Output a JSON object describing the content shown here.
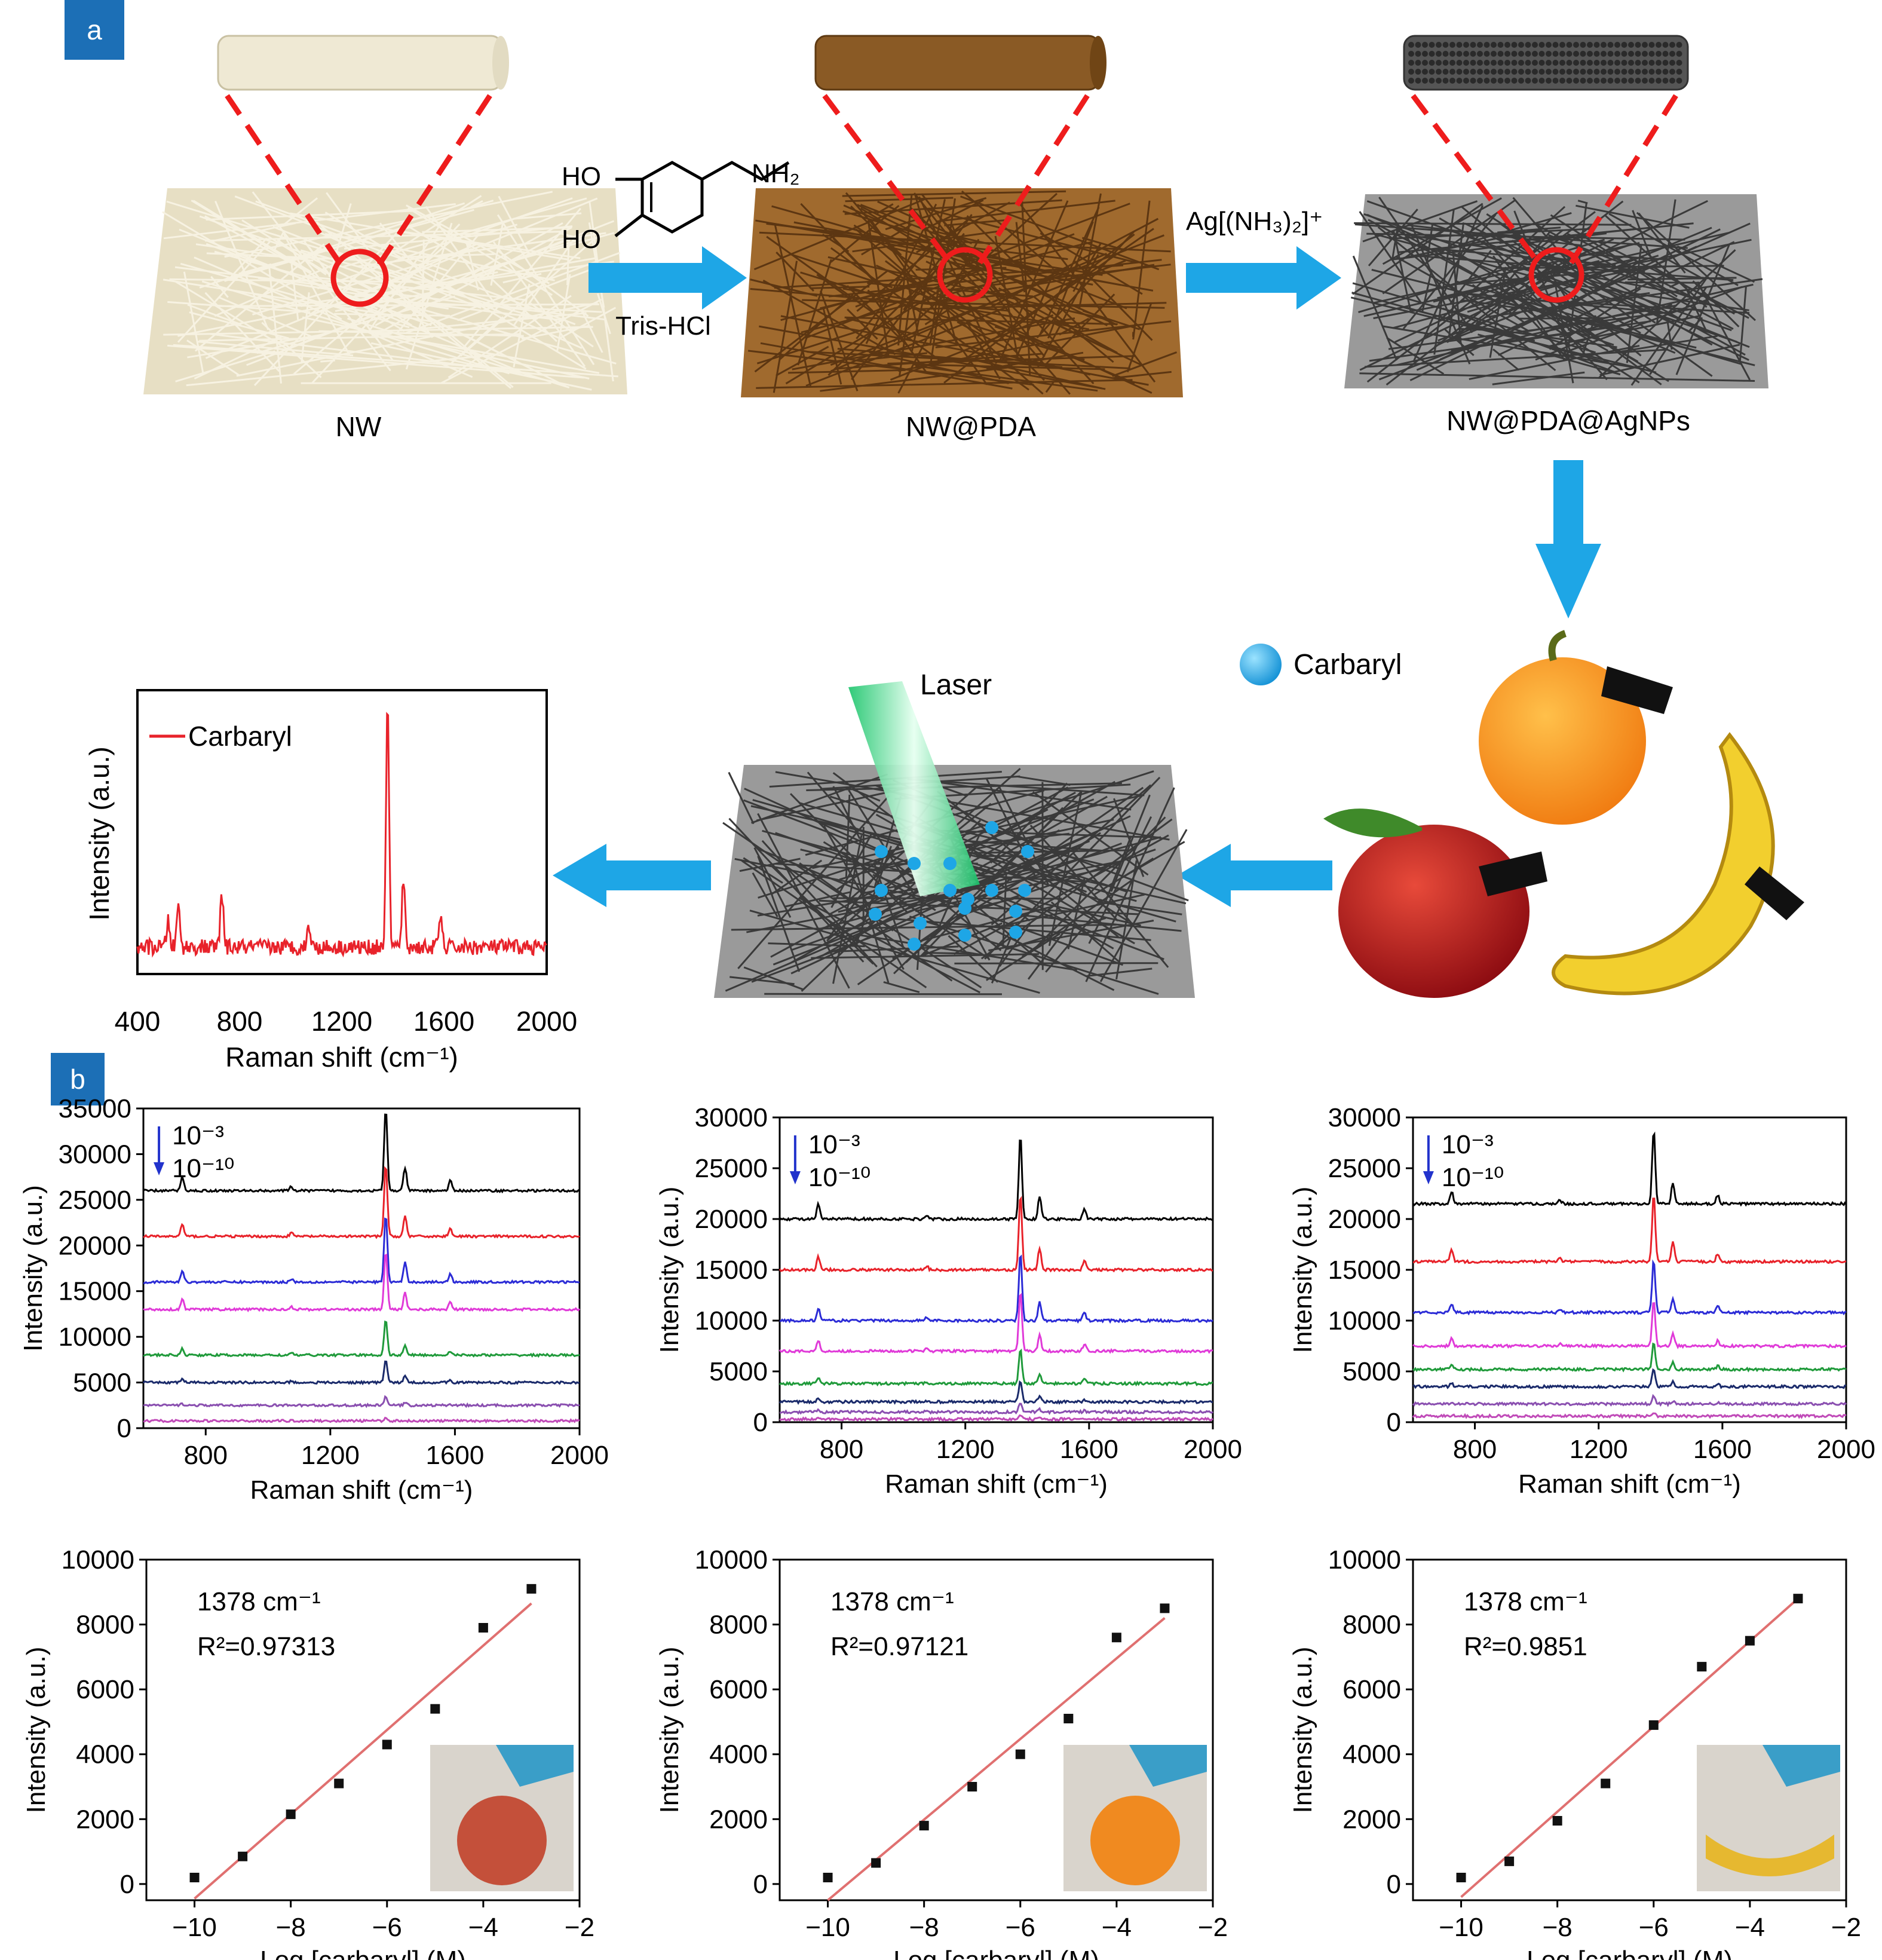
{
  "panel_a": {
    "tag": "a",
    "labels": {
      "nw": "NW",
      "nw_pda": "NW@PDA",
      "nw_pda_ag": "NW@PDA@AgNPs"
    },
    "reagents": {
      "ho_top": "HO",
      "ho_bottom": "HO",
      "nh2": "NH₂",
      "tris": "Tris-HCl",
      "ag_complex": "Ag[(NH₃)₂]⁺"
    },
    "carbaryl_legend": "Carbaryl",
    "laser_label": "Laser",
    "spectrum": {
      "legend": "Carbaryl",
      "xlabel": "Raman shift (cm⁻¹)",
      "ylabel": "Intensity (a.u.)",
      "xticks": [
        "400",
        "800",
        "1200",
        "1600",
        "2000"
      ]
    },
    "colors": {
      "nw": "#d9cfae",
      "pda": "#8a5a25",
      "ag": "#5a5a5a",
      "arrow": "#1ea6e6",
      "dash": "#ee1c1c"
    }
  },
  "panel_b": {
    "tag": "b"
  },
  "chart_data": [
    {
      "type": "line",
      "title": "",
      "xlabel": "Raman shift (cm⁻¹)",
      "ylabel": "Intensity (a.u.)",
      "xlim": [
        600,
        2000
      ],
      "ylim": [
        0,
        35000
      ],
      "yticks": [
        "0",
        "5000",
        "10000",
        "15000",
        "20000",
        "25000",
        "30000",
        "35000"
      ],
      "xticks": [
        "800",
        "1200",
        "1600",
        "2000"
      ],
      "annotation_top": "10⁻³",
      "annotation_bottom": "10⁻¹⁰",
      "baselines": [
        26000,
        21000,
        16000,
        13000,
        8000,
        5000,
        2500,
        800
      ],
      "peak_1378": [
        9000,
        8000,
        7500,
        6500,
        4000,
        2500,
        1000,
        300
      ],
      "colors": [
        "#000000",
        "#e8222a",
        "#2b2bd6",
        "#e03ad8",
        "#1f9a3a",
        "#1a2a6a",
        "#8a4fb0",
        "#c04ab8"
      ]
    },
    {
      "type": "line",
      "title": "",
      "xlabel": "Raman shift (cm⁻¹)",
      "ylabel": "Intensity (a.u.)",
      "xlim": [
        600,
        2000
      ],
      "ylim": [
        0,
        30000
      ],
      "yticks": [
        "0",
        "5000",
        "10000",
        "15000",
        "20000",
        "25000",
        "30000"
      ],
      "xticks": [
        "800",
        "1200",
        "1600",
        "2000"
      ],
      "annotation_top": "10⁻³",
      "annotation_bottom": "10⁻¹⁰",
      "baselines": [
        20000,
        15000,
        10000,
        7000,
        3800,
        2000,
        1000,
        300
      ],
      "peak_1378": [
        8300,
        7500,
        6800,
        6000,
        3500,
        2000,
        1000,
        300
      ],
      "colors": [
        "#000000",
        "#e8222a",
        "#2b2bd6",
        "#e03ad8",
        "#1f9a3a",
        "#1a2a6a",
        "#8a4fb0",
        "#c04ab8"
      ]
    },
    {
      "type": "line",
      "title": "",
      "xlabel": "Raman shift (cm⁻¹)",
      "ylabel": "Intensity (a.u.)",
      "xlim": [
        600,
        2000
      ],
      "ylim": [
        0,
        30000
      ],
      "yticks": [
        "0",
        "5000",
        "10000",
        "15000",
        "20000",
        "25000",
        "30000"
      ],
      "xticks": [
        "800",
        "1200",
        "1600",
        "2000"
      ],
      "annotation_top": "10⁻³",
      "annotation_bottom": "10⁻¹⁰",
      "baselines": [
        21500,
        15800,
        10800,
        7500,
        5200,
        3500,
        1800,
        600
      ],
      "peak_1378": [
        7300,
        6700,
        5200,
        4500,
        2700,
        1800,
        800,
        300
      ],
      "colors": [
        "#000000",
        "#e8222a",
        "#2b2bd6",
        "#e03ad8",
        "#1f9a3a",
        "#1a2a6a",
        "#8a4fb0",
        "#c04ab8"
      ]
    },
    {
      "type": "scatter",
      "title": "",
      "xlabel": "Log [carbaryl] (M)",
      "ylabel": "Intensity (a.u.)",
      "xlim": [
        -11,
        -2
      ],
      "ylim": [
        -500,
        10000
      ],
      "xticks": [
        "-10",
        "-8",
        "-6",
        "-4",
        "-2"
      ],
      "yticks": [
        "0",
        "2000",
        "4000",
        "6000",
        "8000",
        "10000"
      ],
      "x": [
        -10,
        -9,
        -8,
        -7,
        -6,
        -5,
        -4,
        -3
      ],
      "y": [
        200,
        850,
        2150,
        3100,
        4300,
        5400,
        7900,
        9100
      ],
      "fit_line": [
        [
          -10,
          -450
        ],
        [
          -3,
          8650
        ]
      ],
      "peak_label": "1378 cm⁻¹",
      "r2_label": "R²=0.97313"
    },
    {
      "type": "scatter",
      "title": "",
      "xlabel": "Log [carbaryl] (M)",
      "ylabel": "Intensity (a.u.)",
      "xlim": [
        -11,
        -2
      ],
      "ylim": [
        -500,
        10000
      ],
      "xticks": [
        "-10",
        "-8",
        "-6",
        "-4",
        "-2"
      ],
      "yticks": [
        "0",
        "2000",
        "4000",
        "6000",
        "8000",
        "10000"
      ],
      "x": [
        -10,
        -9,
        -8,
        -7,
        -6,
        -5,
        -4,
        -3
      ],
      "y": [
        200,
        650,
        1800,
        3000,
        4000,
        5100,
        7600,
        8500
      ],
      "fit_line": [
        [
          -10,
          -500
        ],
        [
          -3,
          8200
        ]
      ],
      "peak_label": "1378 cm⁻¹",
      "r2_label": "R²=0.97121"
    },
    {
      "type": "scatter",
      "title": "",
      "xlabel": "Log [carbaryl] (M)",
      "ylabel": "Intensity (a.u.)",
      "xlim": [
        -11,
        -2
      ],
      "ylim": [
        -500,
        10000
      ],
      "xticks": [
        "-10",
        "-8",
        "-6",
        "-4",
        "-2"
      ],
      "yticks": [
        "0",
        "2000",
        "4000",
        "6000",
        "8000",
        "10000"
      ],
      "x": [
        -10,
        -9,
        -8,
        -7,
        -6,
        -5,
        -4,
        -3
      ],
      "y": [
        200,
        700,
        1950,
        3100,
        4900,
        6700,
        7500,
        8800
      ],
      "fit_line": [
        [
          -10,
          -400
        ],
        [
          -3,
          8800
        ]
      ],
      "peak_label": "1378 cm⁻¹",
      "r2_label": "R²=0.9851"
    }
  ]
}
